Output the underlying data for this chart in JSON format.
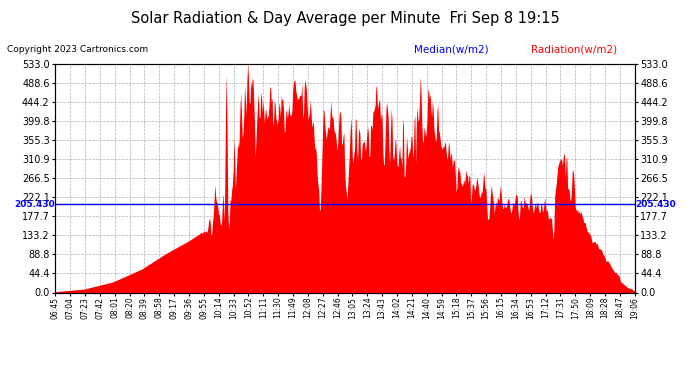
{
  "title": "Solar Radiation & Day Average per Minute  Fri Sep 8 19:15",
  "copyright": "Copyright 2023 Cartronics.com",
  "median_label": "Median(w/m2)",
  "radiation_label": "Radiation(w/m2)",
  "median_value": 205.43,
  "ymin": 0.0,
  "ymax": 533.0,
  "yticks": [
    0.0,
    44.4,
    88.8,
    133.2,
    177.7,
    222.1,
    266.5,
    310.9,
    355.3,
    399.8,
    444.2,
    488.6,
    533.0
  ],
  "background_color": "#ffffff",
  "fill_color": "#ff0000",
  "median_color": "#0000ff",
  "grid_color": "#aaaaaa",
  "title_color": "#000000",
  "copyright_color": "#000000",
  "x_labels": [
    "06:45",
    "07:04",
    "07:23",
    "07:42",
    "08:01",
    "08:20",
    "08:39",
    "08:58",
    "09:17",
    "09:36",
    "09:55",
    "10:14",
    "10:33",
    "10:52",
    "11:11",
    "11:30",
    "11:49",
    "12:08",
    "12:27",
    "12:46",
    "13:05",
    "13:24",
    "13:43",
    "14:02",
    "14:21",
    "14:40",
    "14:59",
    "15:18",
    "15:37",
    "15:56",
    "16:15",
    "16:34",
    "16:53",
    "17:12",
    "17:31",
    "17:50",
    "18:09",
    "18:28",
    "18:47",
    "19:06"
  ],
  "figsize": [
    6.9,
    3.75
  ],
  "dpi": 100
}
